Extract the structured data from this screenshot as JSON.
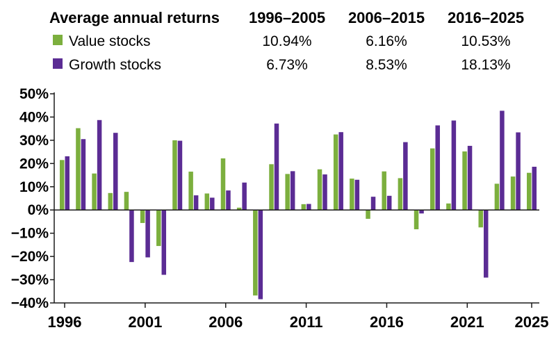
{
  "table": {
    "header": [
      "Average annual returns",
      "1996–2005",
      "2006–2015",
      "2016–2025"
    ],
    "rows": [
      {
        "label": "Value stocks",
        "color": "#7caf3e",
        "values": [
          "10.94%",
          "6.16%",
          "10.53%"
        ]
      },
      {
        "label": "Growth stocks",
        "color": "#5b2c94",
        "values": [
          "6.73%",
          "8.53%",
          "18.13%"
        ]
      }
    ]
  },
  "chart_data": {
    "type": "bar",
    "categories": [
      1996,
      1997,
      1998,
      1999,
      2000,
      2001,
      2002,
      2003,
      2004,
      2005,
      2006,
      2007,
      2008,
      2009,
      2010,
      2011,
      2012,
      2013,
      2014,
      2015,
      2016,
      2017,
      2018,
      2019,
      2020,
      2021,
      2022,
      2023,
      2024,
      2025
    ],
    "series": [
      {
        "name": "Value stocks",
        "color": "#7caf3e",
        "values": [
          21.5,
          35.2,
          15.7,
          7.3,
          7.8,
          -5.6,
          -15.5,
          30.0,
          16.5,
          7.1,
          22.2,
          1.0,
          -36.8,
          19.7,
          15.5,
          2.5,
          17.5,
          32.5,
          13.5,
          -3.8,
          16.6,
          13.7,
          -8.3,
          26.5,
          2.8,
          25.2,
          -7.5,
          11.3,
          14.4,
          16.0
        ]
      },
      {
        "name": "Growth stocks",
        "color": "#5b2c94",
        "values": [
          23.1,
          30.5,
          38.7,
          33.2,
          -22.4,
          -20.4,
          -27.9,
          29.8,
          6.3,
          5.3,
          8.4,
          11.8,
          -38.4,
          37.2,
          16.7,
          2.6,
          15.3,
          33.5,
          13.0,
          5.7,
          6.1,
          29.2,
          -1.5,
          36.4,
          38.5,
          27.6,
          -29.1,
          42.7,
          33.4,
          18.6
        ]
      }
    ],
    "ylim": [
      -40,
      50
    ],
    "yticks": [
      -40,
      -30,
      -20,
      -10,
      0,
      10,
      20,
      30,
      40,
      50
    ],
    "ytick_labels": [
      "−40%",
      "−30%",
      "−20%",
      "−10%",
      "0%",
      "10%",
      "20%",
      "30%",
      "40%",
      "50%"
    ],
    "xtick_labels": [
      "1996",
      "2001",
      "2006",
      "2011",
      "2016",
      "2021",
      "2025"
    ],
    "xtick_years": [
      1996,
      2001,
      2006,
      2011,
      2016,
      2021,
      2025
    ],
    "grid": false,
    "axis_color": "#1a1a1a"
  }
}
